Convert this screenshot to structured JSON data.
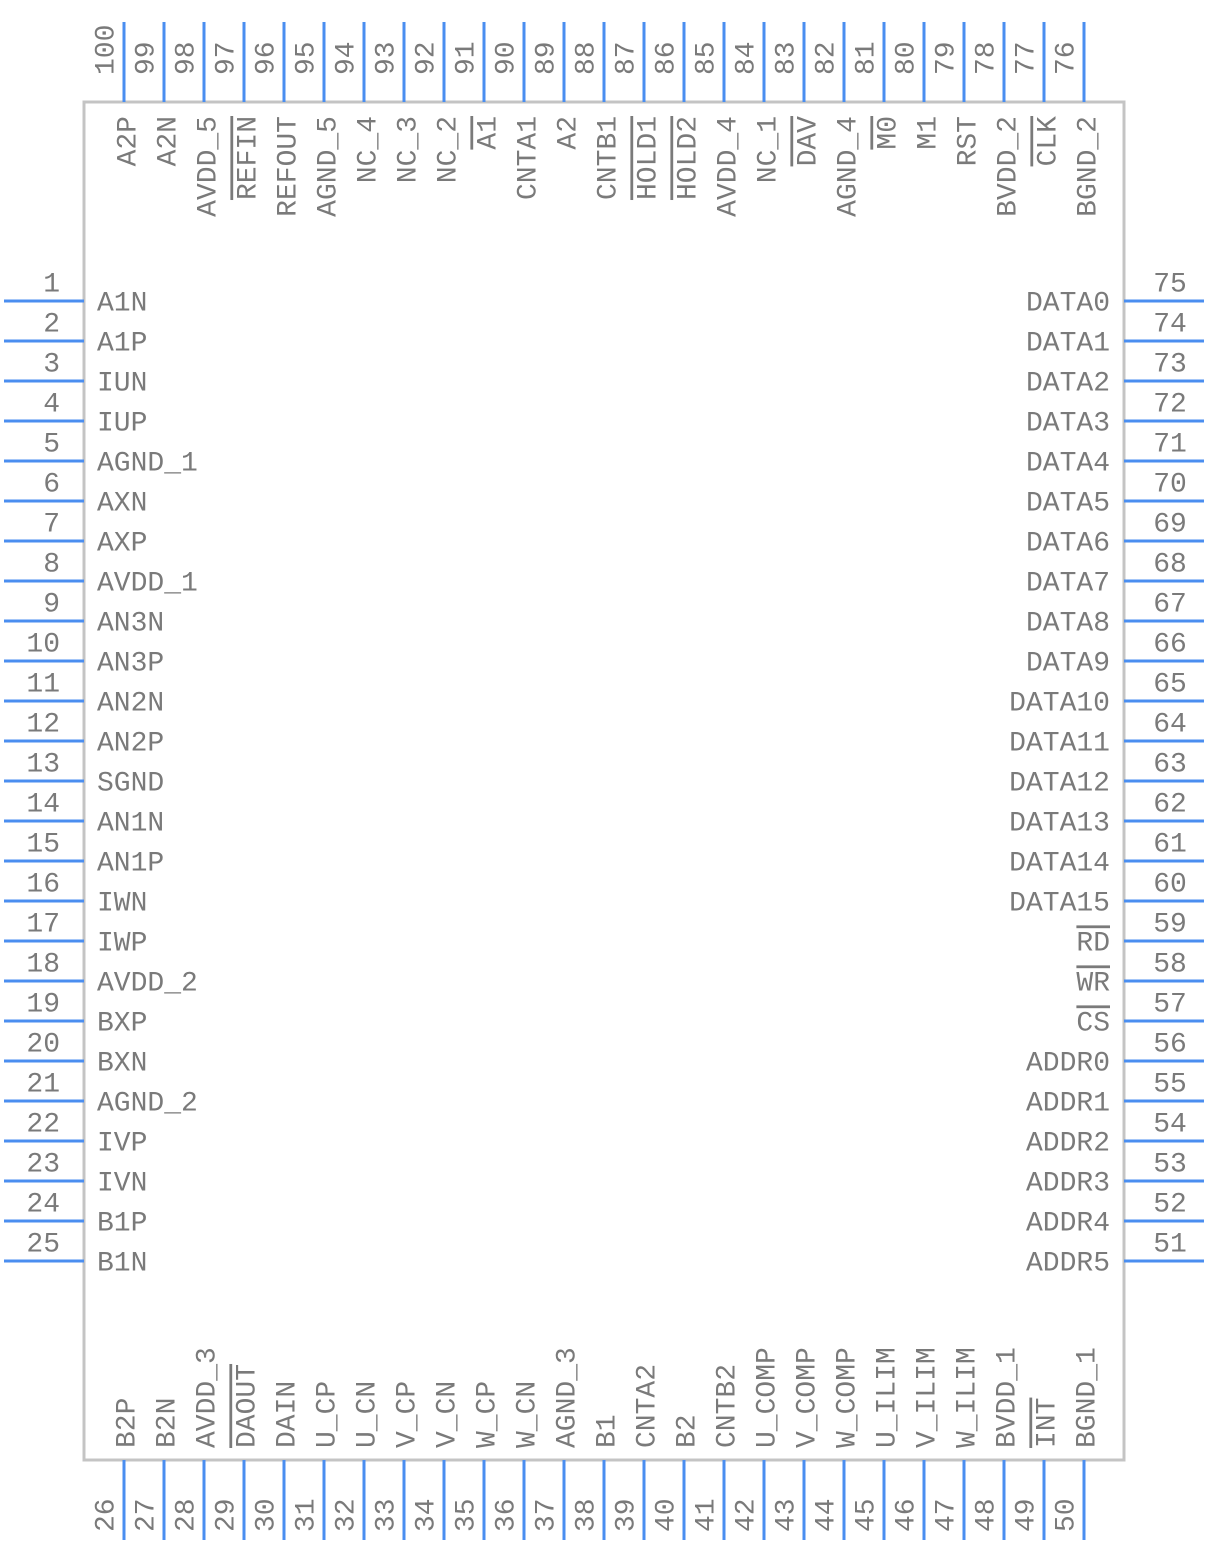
{
  "pins": {
    "left": [
      {
        "number": 1,
        "name": "A1N"
      },
      {
        "number": 2,
        "name": "A1P"
      },
      {
        "number": 3,
        "name": "IUN"
      },
      {
        "number": 4,
        "name": "IUP"
      },
      {
        "number": 5,
        "name": "AGND_1"
      },
      {
        "number": 6,
        "name": "AXN"
      },
      {
        "number": 7,
        "name": "AXP"
      },
      {
        "number": 8,
        "name": "AVDD_1"
      },
      {
        "number": 9,
        "name": "AN3N"
      },
      {
        "number": 10,
        "name": "AN3P"
      },
      {
        "number": 11,
        "name": "AN2N"
      },
      {
        "number": 12,
        "name": "AN2P"
      },
      {
        "number": 13,
        "name": "SGND"
      },
      {
        "number": 14,
        "name": "AN1N"
      },
      {
        "number": 15,
        "name": "AN1P"
      },
      {
        "number": 16,
        "name": "IWN"
      },
      {
        "number": 17,
        "name": "IWP"
      },
      {
        "number": 18,
        "name": "AVDD_2"
      },
      {
        "number": 19,
        "name": "BXP"
      },
      {
        "number": 20,
        "name": "BXN"
      },
      {
        "number": 21,
        "name": "AGND_2"
      },
      {
        "number": 22,
        "name": "IVP"
      },
      {
        "number": 23,
        "name": "IVN"
      },
      {
        "number": 24,
        "name": "B1P"
      },
      {
        "number": 25,
        "name": "B1N"
      }
    ],
    "bottom": [
      {
        "number": 26,
        "name": "B2P"
      },
      {
        "number": 27,
        "name": "B2N"
      },
      {
        "number": 28,
        "name": "AVDD_3"
      },
      {
        "number": 29,
        "name": "DAOUT",
        "overline": true
      },
      {
        "number": 30,
        "name": "DAIN"
      },
      {
        "number": 31,
        "name": "U_CP"
      },
      {
        "number": 32,
        "name": "U_CN"
      },
      {
        "number": 33,
        "name": "V_CP"
      },
      {
        "number": 34,
        "name": "V_CN"
      },
      {
        "number": 35,
        "name": "W_CP"
      },
      {
        "number": 36,
        "name": "W_CN"
      },
      {
        "number": 37,
        "name": "AGND_3"
      },
      {
        "number": 38,
        "name": "B1"
      },
      {
        "number": 39,
        "name": "CNTA2"
      },
      {
        "number": 40,
        "name": "B2"
      },
      {
        "number": 41,
        "name": "CNTB2"
      },
      {
        "number": 42,
        "name": "U_COMP"
      },
      {
        "number": 43,
        "name": "V_COMP"
      },
      {
        "number": 44,
        "name": "W_COMP"
      },
      {
        "number": 45,
        "name": "U_ILIM"
      },
      {
        "number": 46,
        "name": "V_ILIM"
      },
      {
        "number": 47,
        "name": "W_ILIM"
      },
      {
        "number": 48,
        "name": "BVDD_1"
      },
      {
        "number": 49,
        "name": "INT",
        "overline": true
      },
      {
        "number": 50,
        "name": "BGND_1"
      }
    ],
    "right": [
      {
        "number": 75,
        "name": "DATA0"
      },
      {
        "number": 74,
        "name": "DATA1"
      },
      {
        "number": 73,
        "name": "DATA2"
      },
      {
        "number": 72,
        "name": "DATA3"
      },
      {
        "number": 71,
        "name": "DATA4"
      },
      {
        "number": 70,
        "name": "DATA5"
      },
      {
        "number": 69,
        "name": "DATA6"
      },
      {
        "number": 68,
        "name": "DATA7"
      },
      {
        "number": 67,
        "name": "DATA8"
      },
      {
        "number": 66,
        "name": "DATA9"
      },
      {
        "number": 65,
        "name": "DATA10"
      },
      {
        "number": 64,
        "name": "DATA11"
      },
      {
        "number": 63,
        "name": "DATA12"
      },
      {
        "number": 62,
        "name": "DATA13"
      },
      {
        "number": 61,
        "name": "DATA14"
      },
      {
        "number": 60,
        "name": "DATA15"
      },
      {
        "number": 59,
        "name": "RD",
        "overline": true
      },
      {
        "number": 58,
        "name": "WR",
        "overline": true
      },
      {
        "number": 57,
        "name": "CS",
        "overline": true
      },
      {
        "number": 56,
        "name": "ADDR0"
      },
      {
        "number": 55,
        "name": "ADDR1"
      },
      {
        "number": 54,
        "name": "ADDR2"
      },
      {
        "number": 53,
        "name": "ADDR3"
      },
      {
        "number": 52,
        "name": "ADDR4"
      },
      {
        "number": 51,
        "name": "ADDR5"
      }
    ],
    "top": [
      {
        "number": 100,
        "name": "A2P"
      },
      {
        "number": 99,
        "name": "A2N"
      },
      {
        "number": 98,
        "name": "AVDD_5"
      },
      {
        "number": 97,
        "name": "REFIN",
        "overline": true
      },
      {
        "number": 96,
        "name": "REFOUT"
      },
      {
        "number": 95,
        "name": "AGND_5"
      },
      {
        "number": 94,
        "name": "NC_4"
      },
      {
        "number": 93,
        "name": "NC_3"
      },
      {
        "number": 92,
        "name": "NC_2"
      },
      {
        "number": 91,
        "name": "A1",
        "overline": true
      },
      {
        "number": 90,
        "name": "CNTA1"
      },
      {
        "number": 89,
        "name": "A2"
      },
      {
        "number": 88,
        "name": "CNTB1"
      },
      {
        "number": 87,
        "name": "HOLD1",
        "overline": true
      },
      {
        "number": 86,
        "name": "HOLD2",
        "overline": true
      },
      {
        "number": 85,
        "name": "AVDD_4"
      },
      {
        "number": 84,
        "name": "NC_1"
      },
      {
        "number": 83,
        "name": "DAV",
        "overline": true
      },
      {
        "number": 82,
        "name": "AGND_4"
      },
      {
        "number": 81,
        "name": "M0",
        "overline": true
      },
      {
        "number": 80,
        "name": "M1"
      },
      {
        "number": 79,
        "name": "RST"
      },
      {
        "number": 78,
        "name": "BVDD_2"
      },
      {
        "number": 77,
        "name": "CLK",
        "overline": true
      },
      {
        "number": 76,
        "name": "BGND_2"
      }
    ]
  }
}
